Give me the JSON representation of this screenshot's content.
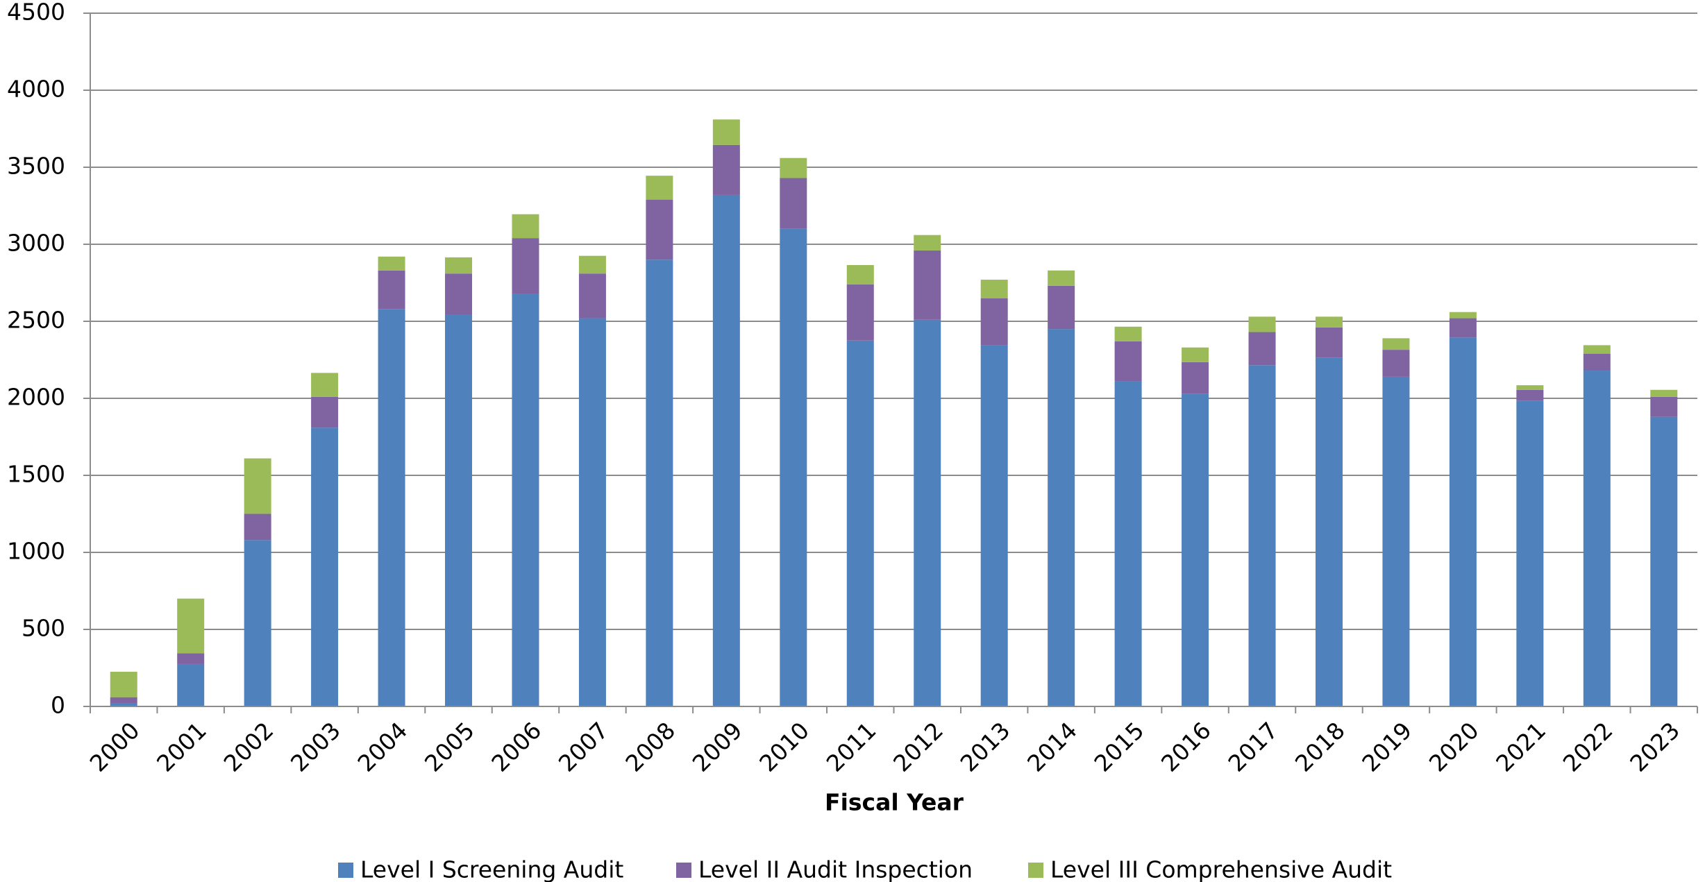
{
  "chart_data": {
    "type": "stacked_bar",
    "x_label": "Fiscal Year",
    "categories": [
      "2000",
      "2001",
      "2002",
      "2003",
      "2004",
      "2005",
      "2006",
      "2007",
      "2008",
      "2009",
      "2010",
      "2011",
      "2012",
      "2013",
      "2014",
      "2015",
      "2016",
      "2017",
      "2018",
      "2019",
      "2020",
      "2021",
      "2022",
      "2023"
    ],
    "series": [
      {
        "name": "Level I Screening Audit",
        "color": "#4f81bd",
        "values": [
          20,
          275,
          1080,
          1810,
          2580,
          2545,
          2680,
          2520,
          2900,
          3320,
          3100,
          2375,
          2510,
          2345,
          2450,
          2110,
          2030,
          2215,
          2265,
          2140,
          2395,
          1985,
          2180,
          1880
        ]
      },
      {
        "name": "Level II Audit Inspection",
        "color": "#8064a2",
        "values": [
          40,
          70,
          170,
          200,
          250,
          265,
          360,
          290,
          390,
          325,
          330,
          365,
          450,
          305,
          280,
          260,
          205,
          215,
          195,
          175,
          125,
          70,
          110,
          130
        ]
      },
      {
        "name": "Level III Comprehensive Audit",
        "color": "#9bbb59",
        "values": [
          165,
          355,
          360,
          155,
          90,
          105,
          155,
          115,
          155,
          165,
          130,
          125,
          100,
          120,
          100,
          95,
          95,
          100,
          70,
          75,
          40,
          30,
          55,
          45
        ]
      }
    ],
    "ylim": [
      0,
      4500
    ],
    "yticks": [
      0,
      500,
      1000,
      1500,
      2000,
      2500,
      3000,
      3500,
      4000,
      4500
    ],
    "grid": true,
    "legend": "bottom"
  }
}
